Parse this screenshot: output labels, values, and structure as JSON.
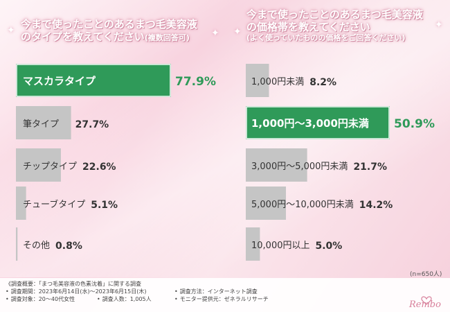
{
  "left_title": {
    "line1": "今まで使ったことのあるまつ毛美容液",
    "line2": "のタイプを教えてください",
    "note": "(複数回答可)"
  },
  "right_title": {
    "line1": "今まで使ったことのあるまつ毛美容液",
    "line2": "の価格帯を教えてください",
    "line3": "(よく使っていたものの価格をご回答ください)"
  },
  "colors": {
    "highlight": "#2f9a59",
    "gray": "#c5c5c5",
    "label_dark": "#333333",
    "value_green": "#2f9a59"
  },
  "chart_data": [
    {
      "type": "bar",
      "orientation": "horizontal",
      "categories": [
        "マスカラタイプ",
        "筆タイプ",
        "チップタイプ",
        "チューブタイプ",
        "その他"
      ],
      "values": [
        77.9,
        27.7,
        22.6,
        5.1,
        0.8
      ],
      "value_labels": [
        "77.9%",
        "27.7%",
        "22.6%",
        "5.1%",
        "0.8%"
      ],
      "highlight_index": 0,
      "unit": "%",
      "xlim": [
        0,
        100
      ]
    },
    {
      "type": "bar",
      "orientation": "horizontal",
      "categories": [
        "1,000円未満",
        "1,000円〜3,000円未満",
        "3,000円〜5,000円未満",
        "5,000円〜10,000円未満",
        "10,000円以上"
      ],
      "values": [
        8.2,
        50.9,
        21.7,
        14.2,
        5.0
      ],
      "value_labels": [
        "8.2%",
        "50.9%",
        "21.7%",
        "14.2%",
        "5.0%"
      ],
      "highlight_index": 1,
      "unit": "%",
      "xlim": [
        0,
        100
      ]
    }
  ],
  "sample_size": "(n=650人)",
  "footer": {
    "line1": "《調査概要：「まつ毛美容液の色素沈着」に関する調査",
    "period": "調査期間：2023年6月14日(水)〜2023年6月15日(木)",
    "method": "調査方法：インターネット調査",
    "target": "調査対象：20〜40代女性",
    "count": "調査人数：1,005人",
    "provider": "モニター提供元：ゼネラルリサーチ"
  },
  "logo": {
    "text": "Rembo",
    "icon": "heart-crest-icon"
  }
}
